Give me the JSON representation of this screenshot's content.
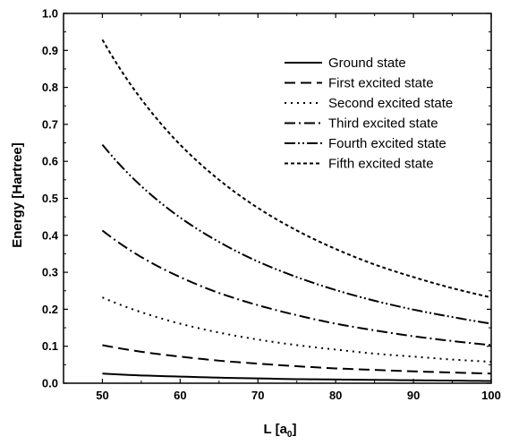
{
  "chart_data": {
    "type": "line",
    "xlabel": "L [a",
    "xlabel_sub": "0",
    "xlabel_close": "]",
    "ylabel": "Energy [Hartree]",
    "xlim": [
      45,
      100
    ],
    "ylim": [
      0.0,
      1.0
    ],
    "xticks": [
      "50",
      "60",
      "70",
      "80",
      "90",
      "100"
    ],
    "yticks": [
      "0.0",
      "0.1",
      "0.2",
      "0.3",
      "0.4",
      "0.5",
      "0.6",
      "0.7",
      "0.8",
      "0.9",
      "1.0"
    ],
    "grid": false,
    "legend_position": "top-right",
    "x": [
      50,
      55,
      60,
      65,
      70,
      75,
      80,
      85,
      90,
      95,
      100
    ],
    "series": [
      {
        "name": "Ground state",
        "dash": "solid",
        "values": [
          0.026,
          0.021,
          0.018,
          0.015,
          0.013,
          0.011,
          0.01,
          0.009,
          0.008,
          0.007,
          0.006
        ]
      },
      {
        "name": "First excited state",
        "dash": "dashed",
        "values": [
          0.103,
          0.085,
          0.072,
          0.061,
          0.053,
          0.046,
          0.04,
          0.036,
          0.032,
          0.029,
          0.026
        ]
      },
      {
        "name": "Second excited state",
        "dash": "dotted",
        "values": [
          0.232,
          0.192,
          0.161,
          0.137,
          0.118,
          0.103,
          0.091,
          0.08,
          0.072,
          0.064,
          0.058
        ]
      },
      {
        "name": "Third excited state",
        "dash": "dash-dot",
        "values": [
          0.413,
          0.341,
          0.287,
          0.244,
          0.211,
          0.184,
          0.161,
          0.143,
          0.127,
          0.114,
          0.103
        ]
      },
      {
        "name": "Fourth excited state",
        "dash": "dash-dot-dot",
        "values": [
          0.645,
          0.533,
          0.448,
          0.382,
          0.329,
          0.287,
          0.252,
          0.223,
          0.199,
          0.179,
          0.161
        ]
      },
      {
        "name": "Fifth excited state",
        "dash": "short-dash",
        "values": [
          0.929,
          0.768,
          0.645,
          0.55,
          0.474,
          0.413,
          0.363,
          0.321,
          0.287,
          0.257,
          0.232
        ]
      }
    ]
  }
}
